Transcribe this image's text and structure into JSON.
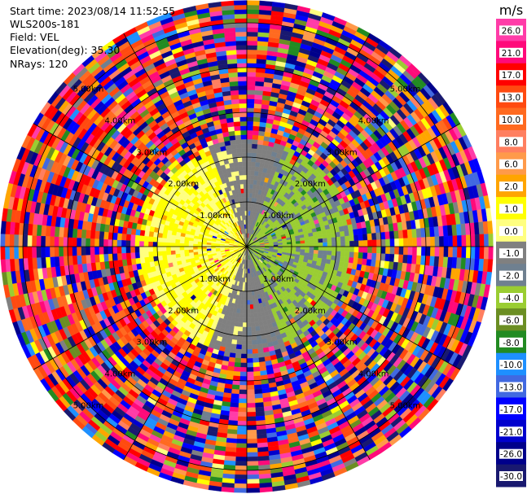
{
  "header": {
    "start_time": "Start time: 2023/08/14 11:52:55",
    "instrument": "WLS200s-181",
    "field": "Field: VEL",
    "elevation": "Elevation(deg): 35.30",
    "nrays": "NRays: 120"
  },
  "chart_data": {
    "type": "heatmap",
    "projection": "polar (PPI)",
    "field": "VEL",
    "unit": "m/s",
    "range_rings_km": [
      1,
      2,
      3,
      4,
      5
    ],
    "range_labels": [
      "1.00km",
      "2.00km",
      "3.00km",
      "4.00km",
      "5.00km"
    ],
    "azimuth_spokes_deg": [
      0,
      30,
      60,
      90,
      120,
      150,
      180,
      210,
      240,
      270,
      300,
      330
    ],
    "n_rays": 120,
    "colorbar": {
      "title": "m/s",
      "tick_labels": [
        "26.0",
        "21.0",
        "17.0",
        "13.0",
        "10.0",
        "8.0",
        "6.0",
        "2.0",
        "1.0",
        "0.0",
        "-1.0",
        "-2.0",
        "-4.0",
        "-6.0",
        "-8.0",
        "-10.0",
        "-13.0",
        "-17.0",
        "-21.0",
        "-26.0",
        "-30.0"
      ],
      "bins": [
        {
          "lo": 26,
          "hi": 30,
          "color": "#ff3ca8"
        },
        {
          "lo": 21,
          "hi": 26,
          "color": "#ff0a7a"
        },
        {
          "lo": 17,
          "hi": 21,
          "color": "#ff0000"
        },
        {
          "lo": 13,
          "hi": 17,
          "color": "#ff4a10"
        },
        {
          "lo": 10,
          "hi": 13,
          "color": "#ff6a20"
        },
        {
          "lo": 8,
          "hi": 10,
          "color": "#ff7f60"
        },
        {
          "lo": 6,
          "hi": 8,
          "color": "#ff9a4a"
        },
        {
          "lo": 2,
          "hi": 6,
          "color": "#ffa500"
        },
        {
          "lo": 1,
          "hi": 2,
          "color": "#ffff00"
        },
        {
          "lo": 0,
          "hi": 1,
          "color": "#ffff80"
        },
        {
          "lo": -1,
          "hi": 0,
          "color": "#808080"
        },
        {
          "lo": -2,
          "hi": -1,
          "color": "#6f8090"
        },
        {
          "lo": -4,
          "hi": -2,
          "color": "#9acd32"
        },
        {
          "lo": -6,
          "hi": -4,
          "color": "#6b8e23"
        },
        {
          "lo": -8,
          "hi": -6,
          "color": "#228b22"
        },
        {
          "lo": -10,
          "hi": -8,
          "color": "#1e90ff"
        },
        {
          "lo": -13,
          "hi": -10,
          "color": "#4169e1"
        },
        {
          "lo": -17,
          "hi": -13,
          "color": "#0000ff"
        },
        {
          "lo": -21,
          "hi": -17,
          "color": "#0000cd"
        },
        {
          "lo": -26,
          "hi": -21,
          "color": "#00008b"
        },
        {
          "lo": -30,
          "hi": -26,
          "color": "#191970"
        }
      ]
    },
    "velocity_pattern": {
      "west_near_range_km": [
        0,
        2.5
      ],
      "west_near_velocity_ms": [
        0,
        2
      ],
      "east_near_range_km": [
        0,
        2.5
      ],
      "east_near_velocity_ms": [
        -4,
        -1
      ],
      "north_south_near_velocity_ms": [
        -1,
        0
      ],
      "far_range_km": [
        2.5,
        5.5
      ],
      "far_range": "noise, all velocity bins"
    }
  }
}
